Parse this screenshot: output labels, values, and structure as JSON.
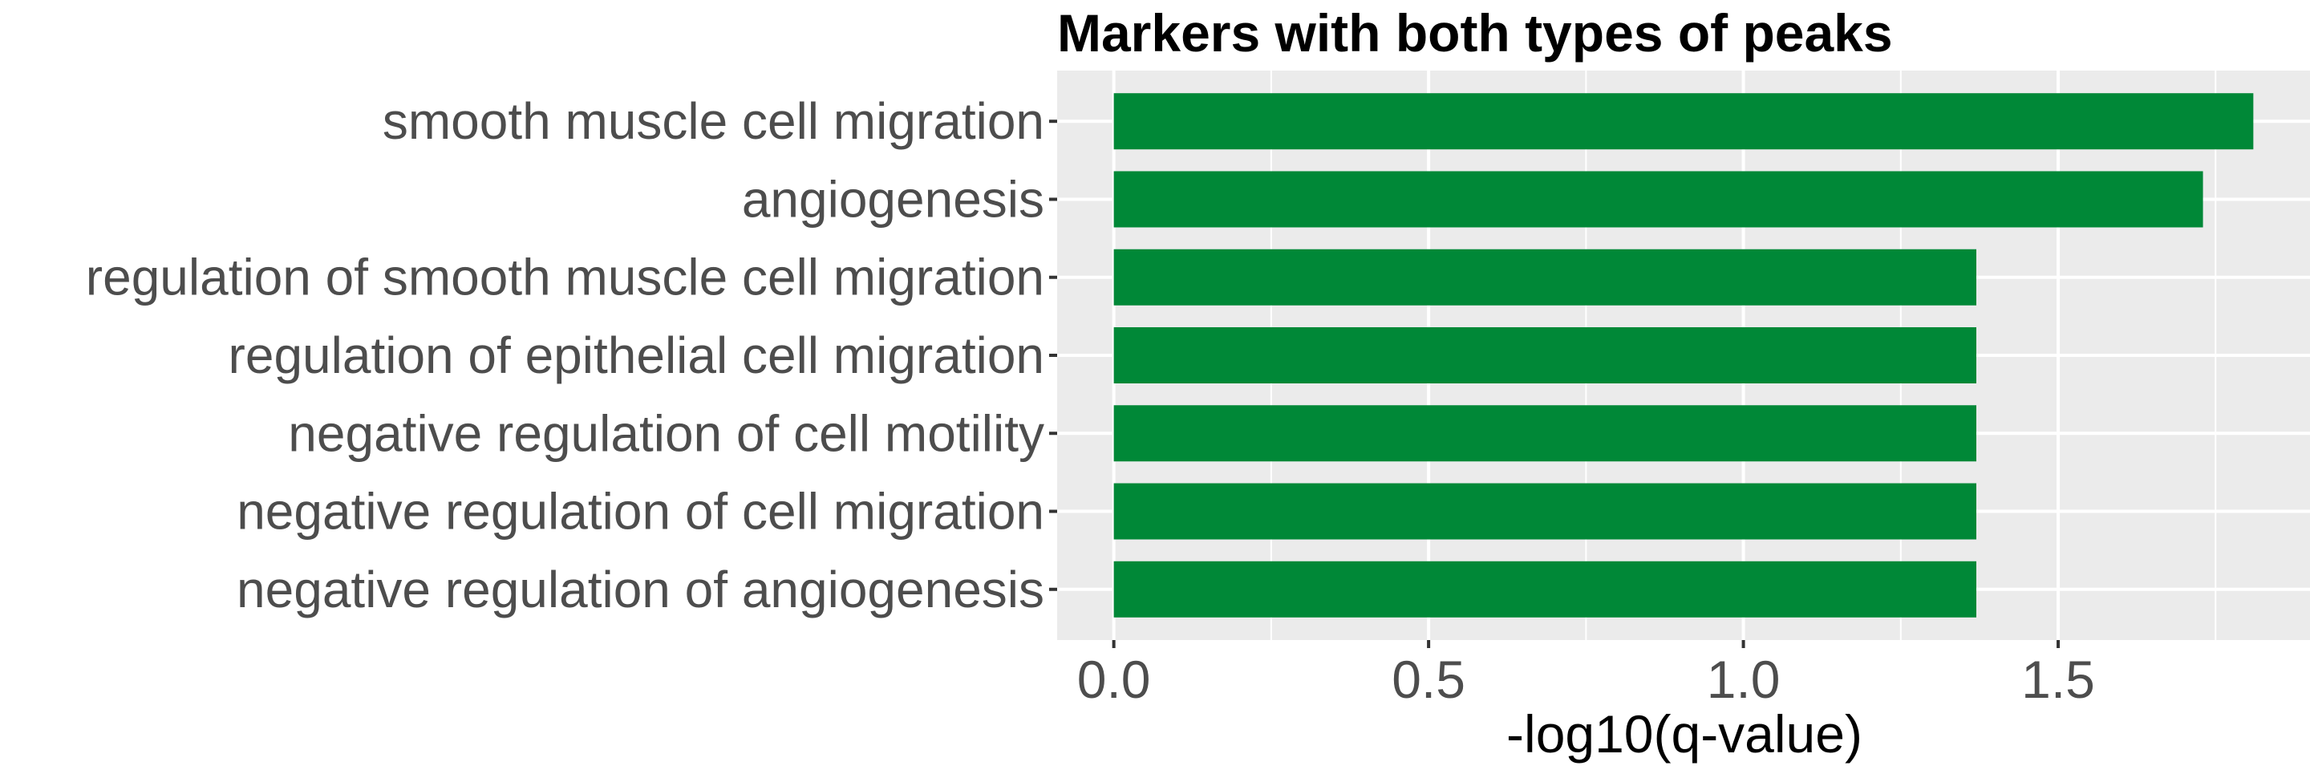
{
  "chart_data": {
    "type": "bar",
    "orientation": "horizontal",
    "title": "Markers with both types of peaks",
    "xlabel": "-log10(q-value)",
    "ylabel": "",
    "categories": [
      "smooth muscle cell migration",
      "angiogenesis",
      "regulation of smooth muscle cell migration",
      "regulation of epithelial cell migration",
      "negative regulation of cell motility",
      "negative regulation of cell migration",
      "negative regulation of angiogenesis"
    ],
    "values": [
      1.81,
      1.73,
      1.37,
      1.37,
      1.37,
      1.37,
      1.37
    ],
    "xlim": [
      -0.09,
      1.9
    ],
    "x_ticks": [
      0.0,
      0.5,
      1.0,
      1.5
    ],
    "x_tick_labels": [
      "0.0",
      "0.5",
      "1.0",
      "1.5"
    ],
    "x_minor_ticks": [
      0.25,
      0.75,
      1.25,
      1.75
    ],
    "bar_color": "#008837",
    "panel_color": "#EBEBEB",
    "grid_color": "#FFFFFF",
    "grid": true,
    "legend": "none"
  }
}
